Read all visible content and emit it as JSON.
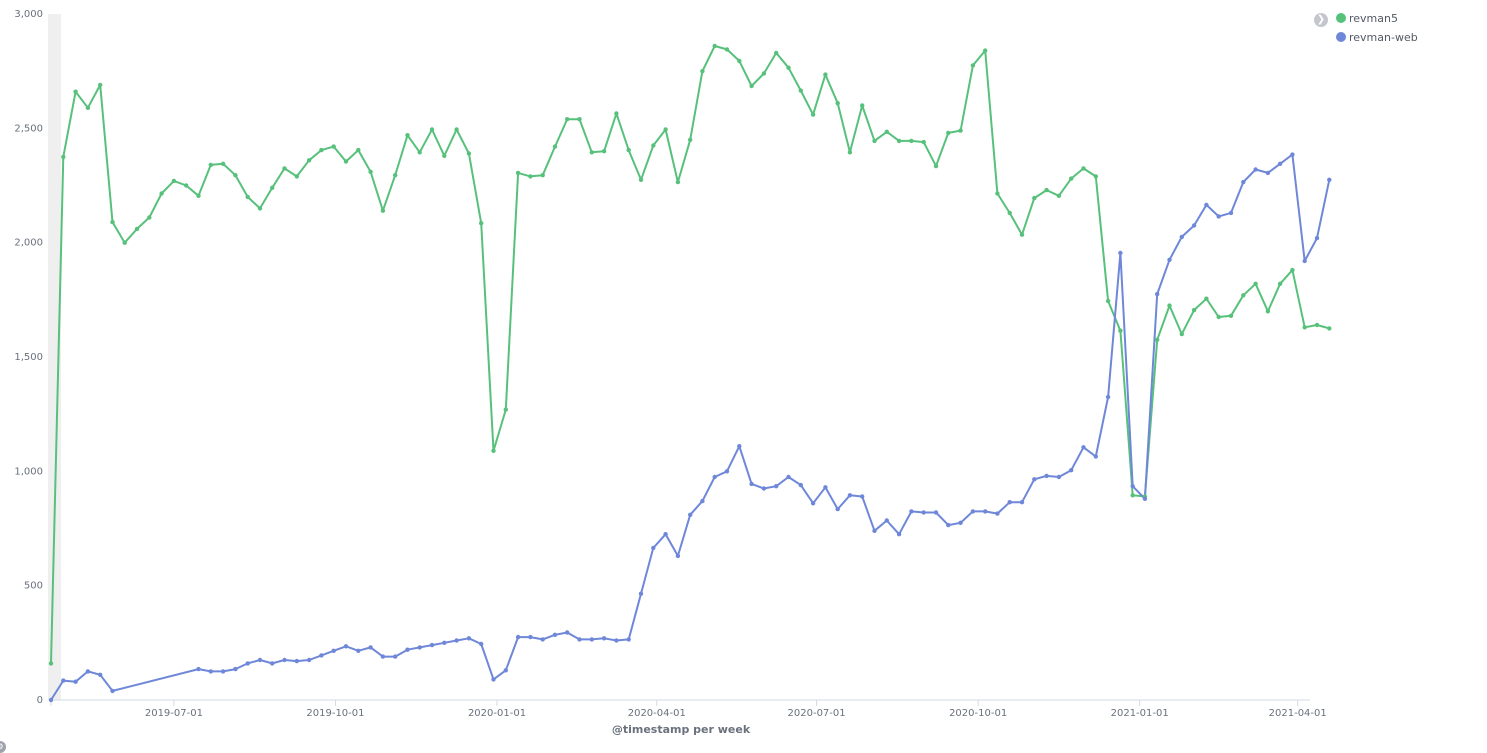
{
  "legend": {
    "toggle_icon": "chevron-right-icon",
    "items": [
      {
        "label": "revman5",
        "color": "#57c17b"
      },
      {
        "label": "revman-web",
        "color": "#6f87d8"
      }
    ]
  },
  "chart_data": {
    "type": "line",
    "title": "",
    "xlabel": "@timestamp per week",
    "ylabel": "",
    "x_start": "2019-04-22",
    "x_step_days": 7,
    "x_range": [
      "2019-04-22",
      "2021-04-08"
    ],
    "ylim": [
      0,
      3000
    ],
    "y_ticks": [
      0,
      500,
      1000,
      1500,
      2000,
      2500,
      3000
    ],
    "y_tick_labels": [
      "0",
      "500",
      "1,000",
      "1,500",
      "2,000",
      "2,500",
      "3,000"
    ],
    "x_ticks": [
      "2019-07-01",
      "2019-10-01",
      "2020-01-01",
      "2020-04-01",
      "2020-07-01",
      "2020-10-01",
      "2021-01-01",
      "2021-04-01"
    ],
    "x_tick_labels": [
      "2019-07-01",
      "2019-10-01",
      "2020-01-01",
      "2020-04-01",
      "2020-07-01",
      "2020-10-01",
      "2021-01-01",
      "2021-04-01"
    ],
    "grid": false,
    "legend_position": "top-right",
    "series": [
      {
        "name": "revman5",
        "color": "#57c17b",
        "values": [
          160,
          2375,
          2660,
          2590,
          2690,
          2090,
          2000,
          2060,
          2110,
          2215,
          2270,
          2250,
          2205,
          2340,
          2345,
          2295,
          2200,
          2150,
          2240,
          2325,
          2290,
          2360,
          2405,
          2420,
          2355,
          2405,
          2310,
          2140,
          2295,
          2470,
          2395,
          2495,
          2380,
          2495,
          2390,
          2085,
          1090,
          1270,
          2305,
          2290,
          2295,
          2420,
          2540,
          2540,
          2395,
          2400,
          2565,
          2405,
          2275,
          2425,
          2495,
          2265,
          2450,
          2750,
          2860,
          2845,
          2795,
          2685,
          2740,
          2830,
          2765,
          2665,
          2560,
          2735,
          2610,
          2395,
          2600,
          2445,
          2485,
          2445,
          2445,
          2440,
          2335,
          2480,
          2490,
          2775,
          2840,
          2215,
          2130,
          2035,
          2195,
          2230,
          2205,
          2280,
          2325,
          2290,
          1745,
          1615,
          895,
          890,
          1575,
          1725,
          1600,
          1705,
          1755,
          1675,
          1680,
          1770,
          1820,
          1700,
          1820,
          1880,
          1630,
          1640,
          1625
        ]
      },
      {
        "name": "revman-web",
        "color": "#6f87d8",
        "values": [
          0,
          85,
          80,
          125,
          110,
          40,
          null,
          null,
          null,
          null,
          null,
          null,
          135,
          125,
          125,
          135,
          160,
          175,
          160,
          175,
          170,
          175,
          195,
          215,
          235,
          215,
          230,
          190,
          190,
          220,
          230,
          240,
          250,
          260,
          270,
          245,
          90,
          130,
          275,
          275,
          265,
          285,
          295,
          265,
          265,
          270,
          260,
          265,
          465,
          665,
          725,
          630,
          810,
          870,
          975,
          1000,
          1110,
          945,
          925,
          935,
          975,
          940,
          860,
          930,
          835,
          895,
          890,
          740,
          785,
          725,
          825,
          820,
          820,
          765,
          775,
          825,
          825,
          815,
          865,
          865,
          965,
          980,
          975,
          1005,
          1105,
          1065,
          1325,
          1955,
          935,
          880,
          1775,
          1925,
          2025,
          2075,
          2165,
          2115,
          2130,
          2265,
          2320,
          2305,
          2345,
          2385,
          1920,
          2020,
          2275
        ]
      }
    ]
  }
}
